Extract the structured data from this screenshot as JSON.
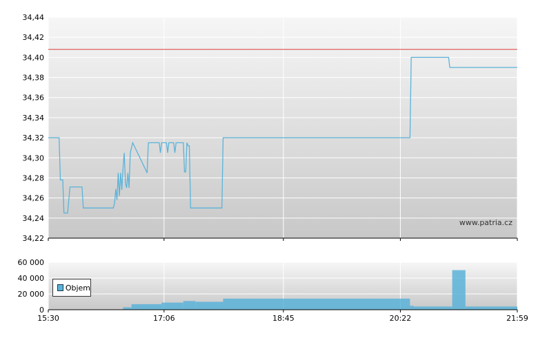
{
  "colors": {
    "price_line": "#5ab3d9",
    "reference_line": "#e03c3c",
    "volume_bars": "#5ab3d9",
    "plot_bg_top": "#f4f4f4",
    "plot_bg_bottom": "#cccccc"
  },
  "watermark": "www.patria.cz",
  "chart_data": [
    {
      "type": "line",
      "name": "price",
      "ylim": [
        34.22,
        34.44
      ],
      "yticks": [
        "34,44",
        "34,42",
        "34,40",
        "34,38",
        "34,36",
        "34,34",
        "34,32",
        "34,30",
        "34,28",
        "34,26",
        "34,24",
        "34,22"
      ],
      "reference_value": 34.408,
      "grid": true,
      "points": [
        [
          "15:30",
          34.32
        ],
        [
          "15:39",
          34.32
        ],
        [
          "15:40",
          34.278
        ],
        [
          "15:42",
          34.278
        ],
        [
          "15:43",
          34.245
        ],
        [
          "15:46",
          34.245
        ],
        [
          "15:48",
          34.271
        ],
        [
          "15:58",
          34.271
        ],
        [
          "15:59",
          34.25
        ],
        [
          "16:24",
          34.25
        ],
        [
          "16:25",
          34.255
        ],
        [
          "16:26",
          34.269
        ],
        [
          "16:27",
          34.258
        ],
        [
          "16:28",
          34.285
        ],
        [
          "16:29",
          34.262
        ],
        [
          "16:30",
          34.285
        ],
        [
          "16:31",
          34.268
        ],
        [
          "16:32",
          34.29
        ],
        [
          "16:33",
          34.305
        ],
        [
          "16:34",
          34.275
        ],
        [
          "16:35",
          34.27
        ],
        [
          "16:36",
          34.285
        ],
        [
          "16:37",
          34.27
        ],
        [
          "16:38",
          34.305
        ],
        [
          "16:40",
          34.315
        ],
        [
          "16:52",
          34.285
        ],
        [
          "16:53",
          34.315
        ],
        [
          "17:02",
          34.315
        ],
        [
          "17:03",
          34.305
        ],
        [
          "17:04",
          34.315
        ],
        [
          "17:08",
          34.315
        ],
        [
          "17:09",
          34.305
        ],
        [
          "17:10",
          34.315
        ],
        [
          "17:14",
          34.315
        ],
        [
          "17:15",
          34.305
        ],
        [
          "17:16",
          34.315
        ],
        [
          "17:22",
          34.315
        ],
        [
          "17:23",
          34.286
        ],
        [
          "17:24",
          34.286
        ],
        [
          "17:25",
          34.315
        ],
        [
          "17:26",
          34.312
        ],
        [
          "17:27",
          34.312
        ],
        [
          "17:28",
          34.25
        ],
        [
          "17:54",
          34.25
        ],
        [
          "17:55",
          34.32
        ],
        [
          "20:30",
          34.32
        ],
        [
          "20:31",
          34.4
        ],
        [
          "21:02",
          34.4
        ],
        [
          "21:03",
          34.39
        ],
        [
          "21:59",
          34.39
        ]
      ]
    },
    {
      "type": "bar",
      "name": "Objem",
      "ylim": [
        0,
        60000
      ],
      "yticks": [
        "60 000",
        "40 000",
        "20 000",
        "0"
      ],
      "xticks": [
        "15:30",
        "17:06",
        "18:45",
        "20:22",
        "21:59"
      ],
      "grid": true,
      "legend": "left",
      "segments": [
        {
          "start": "16:32",
          "end": "16:39",
          "value": 3000
        },
        {
          "start": "16:39",
          "end": "17:04",
          "value": 7000
        },
        {
          "start": "17:04",
          "end": "17:22",
          "value": 9000
        },
        {
          "start": "17:22",
          "end": "17:32",
          "value": 11000
        },
        {
          "start": "17:32",
          "end": "17:55",
          "value": 10000
        },
        {
          "start": "17:55",
          "end": "20:30",
          "value": 14000
        },
        {
          "start": "20:30",
          "end": "20:33",
          "value": 5000
        },
        {
          "start": "20:33",
          "end": "21:05",
          "value": 4000
        },
        {
          "start": "21:05",
          "end": "21:16",
          "value": 50000
        },
        {
          "start": "21:16",
          "end": "21:59",
          "value": 4000
        }
      ]
    }
  ]
}
